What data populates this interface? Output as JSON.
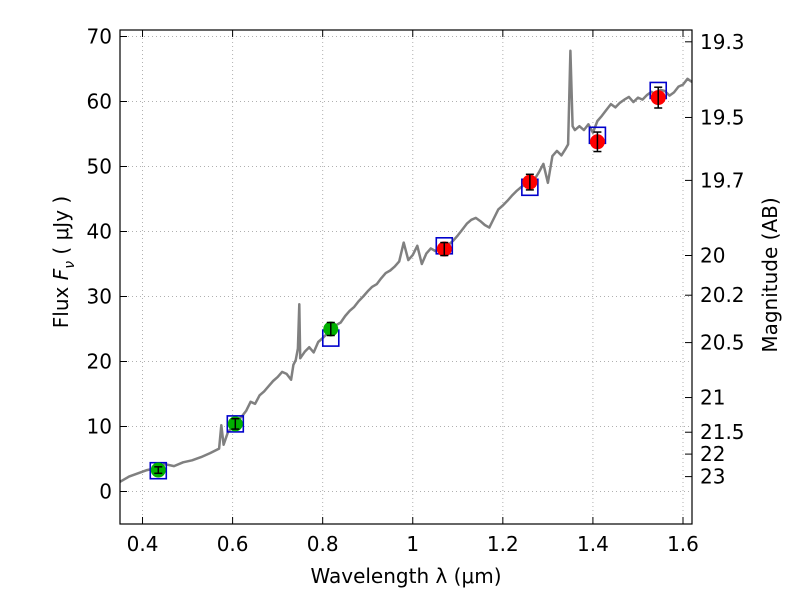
{
  "chart_data": {
    "type": "scatter",
    "xlabel": "Wavelength  λ (μm)",
    "ylabel": "Flux  F_ν  ( μJy )",
    "ylabel_parts": {
      "pre": "Flux  ",
      "sym": "F",
      "sub": "ν",
      "post": "  ( μJy )"
    },
    "ylabel_right": "Magnitude (AB)",
    "xlim": [
      0.35,
      1.62
    ],
    "ylim": [
      -5,
      71
    ],
    "grid": true,
    "x_ticks": [
      {
        "value": 0.4,
        "label": "0.4"
      },
      {
        "value": 0.6,
        "label": "0.6"
      },
      {
        "value": 0.8,
        "label": "0.8"
      },
      {
        "value": 1.0,
        "label": "1"
      },
      {
        "value": 1.2,
        "label": "1.2"
      },
      {
        "value": 1.4,
        "label": "1.4"
      },
      {
        "value": 1.6,
        "label": "1.6"
      }
    ],
    "y_ticks": [
      {
        "value": 0,
        "label": "0"
      },
      {
        "value": 10,
        "label": "10"
      },
      {
        "value": 20,
        "label": "20"
      },
      {
        "value": 30,
        "label": "30"
      },
      {
        "value": 40,
        "label": "40"
      },
      {
        "value": 50,
        "label": "50"
      },
      {
        "value": 60,
        "label": "60"
      },
      {
        "value": 70,
        "label": "70"
      }
    ],
    "mag_ticks": [
      {
        "value": 19.3,
        "label": "19.3"
      },
      {
        "value": 19.5,
        "label": "19.5"
      },
      {
        "value": 19.7,
        "label": "19.7"
      },
      {
        "value": 20,
        "label": "20"
      },
      {
        "value": 20.2,
        "label": "20.2"
      },
      {
        "value": 20.5,
        "label": "20.5"
      },
      {
        "value": 21,
        "label": "21"
      },
      {
        "value": 21.5,
        "label": "21.5"
      },
      {
        "value": 22,
        "label": "22"
      },
      {
        "value": 23,
        "label": "23"
      }
    ],
    "colors": {
      "spectrum": "#808080",
      "model_box": "#0000cc",
      "optical_point": "#00b000",
      "nir_point": "#ff0000",
      "errorbar": "#000000",
      "grid": "#b0b0b0"
    },
    "spectrum": [
      [
        0.35,
        1.5
      ],
      [
        0.37,
        2.3
      ],
      [
        0.39,
        2.8
      ],
      [
        0.41,
        3.3
      ],
      [
        0.43,
        3.6
      ],
      [
        0.45,
        4.2
      ],
      [
        0.47,
        3.9
      ],
      [
        0.49,
        4.5
      ],
      [
        0.51,
        4.8
      ],
      [
        0.53,
        5.3
      ],
      [
        0.55,
        5.9
      ],
      [
        0.57,
        6.6
      ],
      [
        0.575,
        10.2
      ],
      [
        0.58,
        7.2
      ],
      [
        0.59,
        9.2
      ],
      [
        0.6,
        9.9
      ],
      [
        0.61,
        10.9
      ],
      [
        0.62,
        11.5
      ],
      [
        0.63,
        12.4
      ],
      [
        0.64,
        13.8
      ],
      [
        0.65,
        13.5
      ],
      [
        0.66,
        14.8
      ],
      [
        0.67,
        15.4
      ],
      [
        0.68,
        16.2
      ],
      [
        0.69,
        17.0
      ],
      [
        0.7,
        17.6
      ],
      [
        0.71,
        18.4
      ],
      [
        0.72,
        18.1
      ],
      [
        0.73,
        17.2
      ],
      [
        0.735,
        19.5
      ],
      [
        0.74,
        20.2
      ],
      [
        0.745,
        22.0
      ],
      [
        0.748,
        28.8
      ],
      [
        0.75,
        20.5
      ],
      [
        0.76,
        21.5
      ],
      [
        0.77,
        22.2
      ],
      [
        0.78,
        21.4
      ],
      [
        0.79,
        23.0
      ],
      [
        0.8,
        23.6
      ],
      [
        0.81,
        24.3
      ],
      [
        0.82,
        24.8
      ],
      [
        0.83,
        25.6
      ],
      [
        0.84,
        26.0
      ],
      [
        0.85,
        27.0
      ],
      [
        0.86,
        27.8
      ],
      [
        0.87,
        28.4
      ],
      [
        0.88,
        29.3
      ],
      [
        0.89,
        30.0
      ],
      [
        0.9,
        30.8
      ],
      [
        0.91,
        31.5
      ],
      [
        0.92,
        31.9
      ],
      [
        0.93,
        32.8
      ],
      [
        0.94,
        33.6
      ],
      [
        0.95,
        34.0
      ],
      [
        0.96,
        34.6
      ],
      [
        0.97,
        35.4
      ],
      [
        0.98,
        38.3
      ],
      [
        0.99,
        35.6
      ],
      [
        1.0,
        36.4
      ],
      [
        1.01,
        37.8
      ],
      [
        1.02,
        35.0
      ],
      [
        1.03,
        36.6
      ],
      [
        1.04,
        37.4
      ],
      [
        1.05,
        37.0
      ],
      [
        1.06,
        37.5
      ],
      [
        1.07,
        37.1
      ],
      [
        1.08,
        38.0
      ],
      [
        1.09,
        38.6
      ],
      [
        1.1,
        39.4
      ],
      [
        1.11,
        40.3
      ],
      [
        1.12,
        41.2
      ],
      [
        1.13,
        41.8
      ],
      [
        1.14,
        42.1
      ],
      [
        1.15,
        41.6
      ],
      [
        1.16,
        41.0
      ],
      [
        1.17,
        40.6
      ],
      [
        1.18,
        42.0
      ],
      [
        1.19,
        43.4
      ],
      [
        1.2,
        44.0
      ],
      [
        1.21,
        44.7
      ],
      [
        1.22,
        45.5
      ],
      [
        1.23,
        46.2
      ],
      [
        1.24,
        46.8
      ],
      [
        1.25,
        47.3
      ],
      [
        1.26,
        47.8
      ],
      [
        1.27,
        48.0
      ],
      [
        1.28,
        49.1
      ],
      [
        1.29,
        50.4
      ],
      [
        1.3,
        47.5
      ],
      [
        1.31,
        51.6
      ],
      [
        1.32,
        52.4
      ],
      [
        1.33,
        51.7
      ],
      [
        1.34,
        52.8
      ],
      [
        1.345,
        53.4
      ],
      [
        1.35,
        67.8
      ],
      [
        1.355,
        56.2
      ],
      [
        1.36,
        55.6
      ],
      [
        1.37,
        56.2
      ],
      [
        1.38,
        55.6
      ],
      [
        1.39,
        56.5
      ],
      [
        1.4,
        55.2
      ],
      [
        1.41,
        57.0
      ],
      [
        1.42,
        57.8
      ],
      [
        1.43,
        58.7
      ],
      [
        1.44,
        59.6
      ],
      [
        1.45,
        59.1
      ],
      [
        1.46,
        59.8
      ],
      [
        1.47,
        60.3
      ],
      [
        1.48,
        60.7
      ],
      [
        1.49,
        59.9
      ],
      [
        1.5,
        60.6
      ],
      [
        1.51,
        60.3
      ],
      [
        1.52,
        61.0
      ],
      [
        1.53,
        61.5
      ],
      [
        1.54,
        61.0
      ],
      [
        1.55,
        61.8
      ],
      [
        1.56,
        61.6
      ],
      [
        1.57,
        60.9
      ],
      [
        1.58,
        61.4
      ],
      [
        1.59,
        62.3
      ],
      [
        1.6,
        62.6
      ],
      [
        1.61,
        63.5
      ],
      [
        1.62,
        63.0
      ]
    ],
    "model_boxes": [
      {
        "x": 0.435,
        "y": 3.2
      },
      {
        "x": 0.606,
        "y": 10.4
      },
      {
        "x": 0.818,
        "y": 23.6
      },
      {
        "x": 1.07,
        "y": 37.8
      },
      {
        "x": 1.26,
        "y": 46.8
      },
      {
        "x": 1.41,
        "y": 54.8
      },
      {
        "x": 1.545,
        "y": 61.7
      }
    ],
    "observed": [
      {
        "x": 0.435,
        "y": 3.3,
        "err": 0.5,
        "band": "optical"
      },
      {
        "x": 0.606,
        "y": 10.4,
        "err": 0.8,
        "band": "optical"
      },
      {
        "x": 0.818,
        "y": 25.0,
        "err": 1.0,
        "band": "optical"
      },
      {
        "x": 1.07,
        "y": 37.3,
        "err": 1.0,
        "band": "nir"
      },
      {
        "x": 1.26,
        "y": 47.6,
        "err": 1.2,
        "band": "nir"
      },
      {
        "x": 1.41,
        "y": 53.8,
        "err": 1.5,
        "band": "nir"
      },
      {
        "x": 1.545,
        "y": 60.6,
        "err": 1.6,
        "band": "nir"
      }
    ]
  }
}
